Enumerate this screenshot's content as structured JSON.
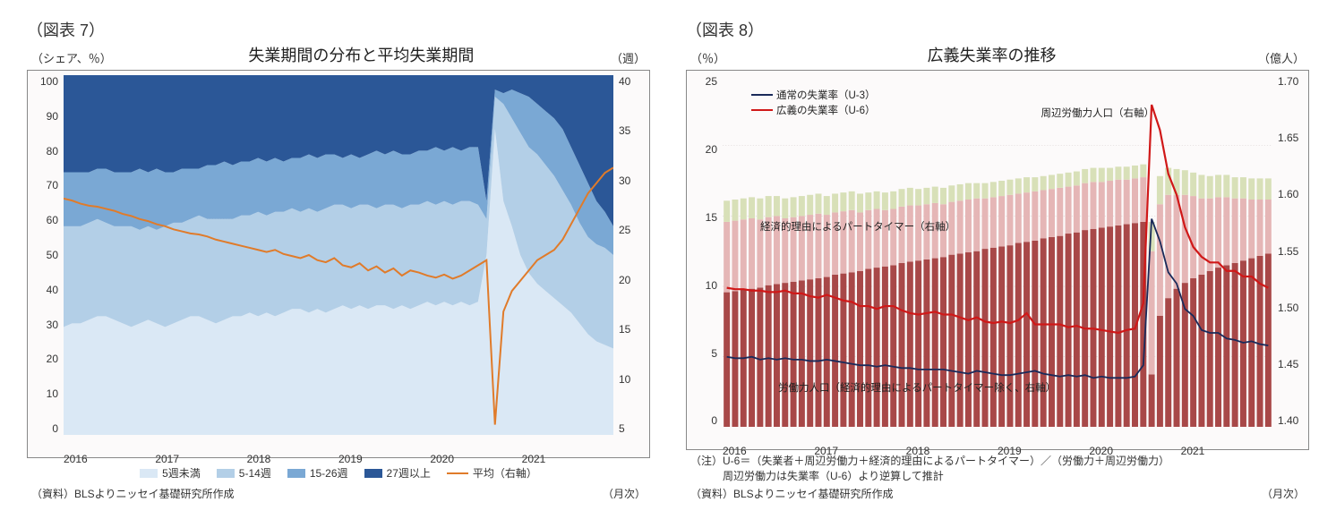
{
  "chart7": {
    "fig_label": "（図表 7）",
    "title": "失業期間の分布と平均失業期間",
    "unit_left": "（シェア、％）",
    "unit_right": "（週）",
    "type": "stacked-area + line",
    "x_years": [
      "2016",
      "2017",
      "2018",
      "2019",
      "2020",
      "2021"
    ],
    "y_left_ticks": [
      "100",
      "90",
      "80",
      "70",
      "60",
      "50",
      "40",
      "30",
      "20",
      "10",
      "0"
    ],
    "y_right_ticks": [
      "40",
      "35",
      "30",
      "25",
      "20",
      "15",
      "10",
      "5"
    ],
    "y_left_lim": [
      0,
      100
    ],
    "y_right_lim": [
      5,
      40
    ],
    "n_points": 66,
    "series_colors": {
      "lt5": "#dae8f5",
      "w5_14": "#b3cfe7",
      "w15_26": "#7aa8d4",
      "w27p": "#2b5797",
      "avg_line": "#e07b2a"
    },
    "cum1": [
      30,
      31,
      31,
      32,
      33,
      33,
      32,
      31,
      30,
      31,
      32,
      31,
      30,
      31,
      32,
      33,
      33,
      32,
      31,
      32,
      33,
      33,
      34,
      33,
      34,
      33,
      34,
      35,
      35,
      34,
      35,
      34,
      35,
      36,
      35,
      36,
      35,
      36,
      36,
      35,
      36,
      35,
      36,
      37,
      36,
      37,
      36,
      37,
      36,
      37,
      50,
      85,
      65,
      58,
      50,
      45,
      42,
      40,
      38,
      36,
      34,
      31,
      28,
      26,
      25,
      24
    ],
    "cum2": [
      58,
      58,
      58,
      59,
      60,
      59,
      58,
      58,
      58,
      57,
      58,
      57,
      58,
      59,
      59,
      60,
      61,
      60,
      60,
      60,
      60,
      61,
      61,
      62,
      61,
      62,
      62,
      63,
      62,
      63,
      62,
      63,
      64,
      64,
      63,
      64,
      64,
      63,
      64,
      64,
      63,
      64,
      64,
      65,
      64,
      65,
      64,
      65,
      65,
      64,
      60,
      94,
      92,
      88,
      84,
      80,
      78,
      75,
      72,
      68,
      64,
      59,
      55,
      53,
      52,
      50
    ],
    "cum3": [
      73,
      73,
      73,
      73,
      74,
      74,
      73,
      73,
      73,
      74,
      73,
      74,
      73,
      73,
      74,
      74,
      74,
      75,
      75,
      76,
      75,
      76,
      76,
      77,
      76,
      77,
      76,
      77,
      77,
      78,
      77,
      78,
      78,
      77,
      78,
      77,
      78,
      79,
      78,
      79,
      78,
      78,
      79,
      79,
      80,
      79,
      80,
      79,
      80,
      80,
      65,
      96,
      95,
      96,
      95,
      94,
      92,
      90,
      88,
      85,
      80,
      75,
      70,
      65,
      62,
      58
    ],
    "avg_weeks": [
      28,
      27.8,
      27.5,
      27.3,
      27.2,
      27,
      26.8,
      26.5,
      26.3,
      26,
      25.8,
      25.5,
      25.3,
      25,
      24.8,
      24.6,
      24.5,
      24.3,
      24,
      23.8,
      23.6,
      23.4,
      23.2,
      23,
      22.8,
      23,
      22.6,
      22.4,
      22.2,
      22.5,
      22,
      21.8,
      22.2,
      21.5,
      21.3,
      21.7,
      21,
      21.4,
      20.8,
      21.2,
      20.5,
      21,
      20.8,
      20.5,
      20.3,
      20.6,
      20.2,
      20.5,
      21,
      21.5,
      22,
      6,
      17,
      19,
      20,
      21,
      22,
      22.5,
      23,
      24,
      25.5,
      27,
      28.5,
      29.5,
      30.5,
      31
    ],
    "legend": {
      "lt5": "5週未満",
      "w5_14": "5-14週",
      "w15_26": "15-26週",
      "w27p": "27週以上",
      "avg": "平均（右軸）"
    },
    "source": "（資料）BLSよりニッセイ基礎研究所作成",
    "freq": "（月次）"
  },
  "chart8": {
    "fig_label": "（図表 8）",
    "title": "広義失業率の推移",
    "unit_left": "（％）",
    "unit_right": "（億人）",
    "type": "stacked-bar + 2 lines",
    "x_years": [
      "2016",
      "2017",
      "2018",
      "2019",
      "2020",
      "2021"
    ],
    "y_left_ticks": [
      "25",
      "20",
      "15",
      "10",
      "5",
      "0"
    ],
    "y_right_ticks": [
      "1.70",
      "1.65",
      "1.60",
      "1.55",
      "1.50",
      "1.45",
      "1.40"
    ],
    "y_left_lim": [
      0,
      25
    ],
    "y_right_lim": [
      1.4,
      1.7
    ],
    "n_bars": 66,
    "bar_colors": {
      "labor_force": "#a84848",
      "part_timer": "#e5b6b6",
      "marginal": "#d8e0b8"
    },
    "line_colors": {
      "u3": "#1a2a5a",
      "u6": "#d01818"
    },
    "labor_force_pop": [
      1.515,
      1.516,
      1.517,
      1.518,
      1.519,
      1.521,
      1.522,
      1.523,
      1.524,
      1.525,
      1.526,
      1.527,
      1.528,
      1.53,
      1.531,
      1.532,
      1.533,
      1.535,
      1.536,
      1.537,
      1.538,
      1.54,
      1.541,
      1.542,
      1.543,
      1.544,
      1.545,
      1.547,
      1.548,
      1.549,
      1.55,
      1.552,
      1.553,
      1.554,
      1.555,
      1.557,
      1.558,
      1.559,
      1.561,
      1.562,
      1.563,
      1.565,
      1.566,
      1.568,
      1.569,
      1.57,
      1.571,
      1.572,
      1.573,
      1.574,
      1.575,
      1.445,
      1.495,
      1.51,
      1.518,
      1.523,
      1.527,
      1.53,
      1.533,
      1.536,
      1.538,
      1.54,
      1.542,
      1.544,
      1.546,
      1.548
    ],
    "part_timer_pop": [
      0.06,
      0.06,
      0.06,
      0.06,
      0.058,
      0.058,
      0.058,
      0.055,
      0.055,
      0.055,
      0.055,
      0.055,
      0.053,
      0.053,
      0.053,
      0.053,
      0.05,
      0.05,
      0.05,
      0.048,
      0.048,
      0.048,
      0.048,
      0.047,
      0.047,
      0.047,
      0.045,
      0.045,
      0.045,
      0.045,
      0.045,
      0.043,
      0.043,
      0.043,
      0.043,
      0.042,
      0.042,
      0.042,
      0.041,
      0.041,
      0.041,
      0.04,
      0.04,
      0.04,
      0.04,
      0.039,
      0.039,
      0.039,
      0.038,
      0.038,
      0.038,
      0.105,
      0.095,
      0.088,
      0.08,
      0.075,
      0.07,
      0.065,
      0.062,
      0.06,
      0.058,
      0.055,
      0.053,
      0.05,
      0.048,
      0.046
    ],
    "marginal_pop": [
      0.018,
      0.018,
      0.018,
      0.018,
      0.018,
      0.018,
      0.017,
      0.017,
      0.017,
      0.017,
      0.017,
      0.017,
      0.016,
      0.016,
      0.016,
      0.016,
      0.016,
      0.015,
      0.015,
      0.015,
      0.015,
      0.015,
      0.015,
      0.014,
      0.014,
      0.014,
      0.014,
      0.014,
      0.014,
      0.014,
      0.013,
      0.013,
      0.013,
      0.013,
      0.013,
      0.013,
      0.013,
      0.012,
      0.012,
      0.012,
      0.012,
      0.012,
      0.012,
      0.012,
      0.012,
      0.012,
      0.011,
      0.011,
      0.011,
      0.011,
      0.011,
      0.025,
      0.024,
      0.023,
      0.022,
      0.021,
      0.02,
      0.02,
      0.019,
      0.019,
      0.019,
      0.018,
      0.018,
      0.018,
      0.018,
      0.018
    ],
    "u3": [
      5.0,
      4.9,
      4.9,
      5.0,
      4.8,
      4.9,
      4.8,
      4.9,
      4.8,
      4.8,
      4.7,
      4.7,
      4.8,
      4.7,
      4.6,
      4.5,
      4.4,
      4.4,
      4.3,
      4.4,
      4.3,
      4.2,
      4.2,
      4.1,
      4.1,
      4.1,
      4.1,
      4.0,
      3.9,
      3.8,
      4.0,
      3.9,
      3.8,
      3.7,
      3.7,
      3.8,
      3.9,
      4.0,
      3.8,
      3.7,
      3.6,
      3.7,
      3.6,
      3.7,
      3.5,
      3.6,
      3.5,
      3.5,
      3.5,
      3.6,
      4.4,
      14.8,
      13.2,
      11.0,
      10.2,
      8.4,
      7.9,
      6.9,
      6.7,
      6.7,
      6.3,
      6.2,
      6.0,
      6.1,
      5.9,
      5.8
    ],
    "u6": [
      9.9,
      9.8,
      9.8,
      9.7,
      9.7,
      9.6,
      9.6,
      9.7,
      9.5,
      9.5,
      9.3,
      9.2,
      9.4,
      9.2,
      9.0,
      8.9,
      8.6,
      8.6,
      8.4,
      8.6,
      8.6,
      8.3,
      8.1,
      8.0,
      8.1,
      8.2,
      8.0,
      8.0,
      7.8,
      7.6,
      7.8,
      7.5,
      7.4,
      7.5,
      7.4,
      7.6,
      8.1,
      7.3,
      7.3,
      7.3,
      7.3,
      7.1,
      7.2,
      7.0,
      7.0,
      6.9,
      6.8,
      6.7,
      6.9,
      7.0,
      8.8,
      22.9,
      21.1,
      18.0,
      16.5,
      14.2,
      12.8,
      12.1,
      11.7,
      11.7,
      11.1,
      11.1,
      10.7,
      10.7,
      10.2,
      9.9
    ],
    "legend": {
      "u3": "通常の失業率（U-3）",
      "u6": "広義の失業率（U-6）",
      "marginal": "周辺労働力人口（右軸）",
      "part_timer": "経済的理由によるパートタイマー（右軸）",
      "labor_force": "労働力人口（経済的理由によるパートタイマー除く、右軸）"
    },
    "note1": "（注）U-6＝（失業者＋周辺労働力＋経済的理由によるパートタイマー）／（労働力＋周辺労働力）",
    "note2": "　　　周辺労働力は失業率（U-6）より逆算して推計",
    "source": "（資料）BLSよりニッセイ基礎研究所作成",
    "freq": "（月次）"
  }
}
